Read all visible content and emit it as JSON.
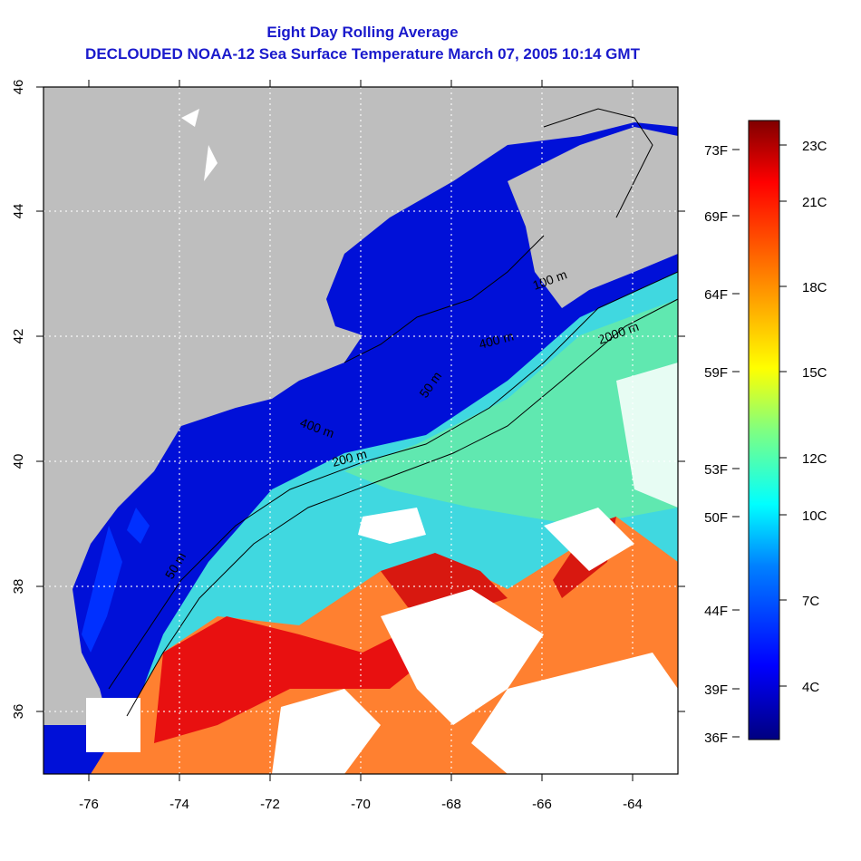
{
  "title": {
    "line1": "Eight Day Rolling Average",
    "line2": "DECLOUDED NOAA-12 Sea Surface Temperature March 07, 2005 10:14 GMT"
  },
  "map": {
    "lon_ticks": [
      "-76",
      "-74",
      "-72",
      "-70",
      "-68",
      "-66",
      "-64"
    ],
    "lat_ticks": [
      "46",
      "44",
      "42",
      "40",
      "38",
      "36"
    ],
    "contour_labels": [
      "50 m",
      "200 m",
      "2000 m",
      "400 m",
      "50 m",
      "100 m",
      "400 m"
    ]
  },
  "colorbar": {
    "celsius": [
      "23C",
      "21C",
      "18C",
      "15C",
      "12C",
      "10C",
      "7C",
      "4C"
    ],
    "fahrenheit": [
      "73F",
      "69F",
      "64F",
      "59F",
      "53F",
      "50F",
      "44F",
      "39F",
      "36F"
    ],
    "colors": [
      "#000080",
      "#0000ff",
      "#0080ff",
      "#00ffff",
      "#80ff80",
      "#ffff00",
      "#ff8000",
      "#ff0000",
      "#800000"
    ]
  },
  "colors": {
    "land": "#bebebe",
    "cloud": "#ffffff",
    "title": "#1a1acc"
  }
}
